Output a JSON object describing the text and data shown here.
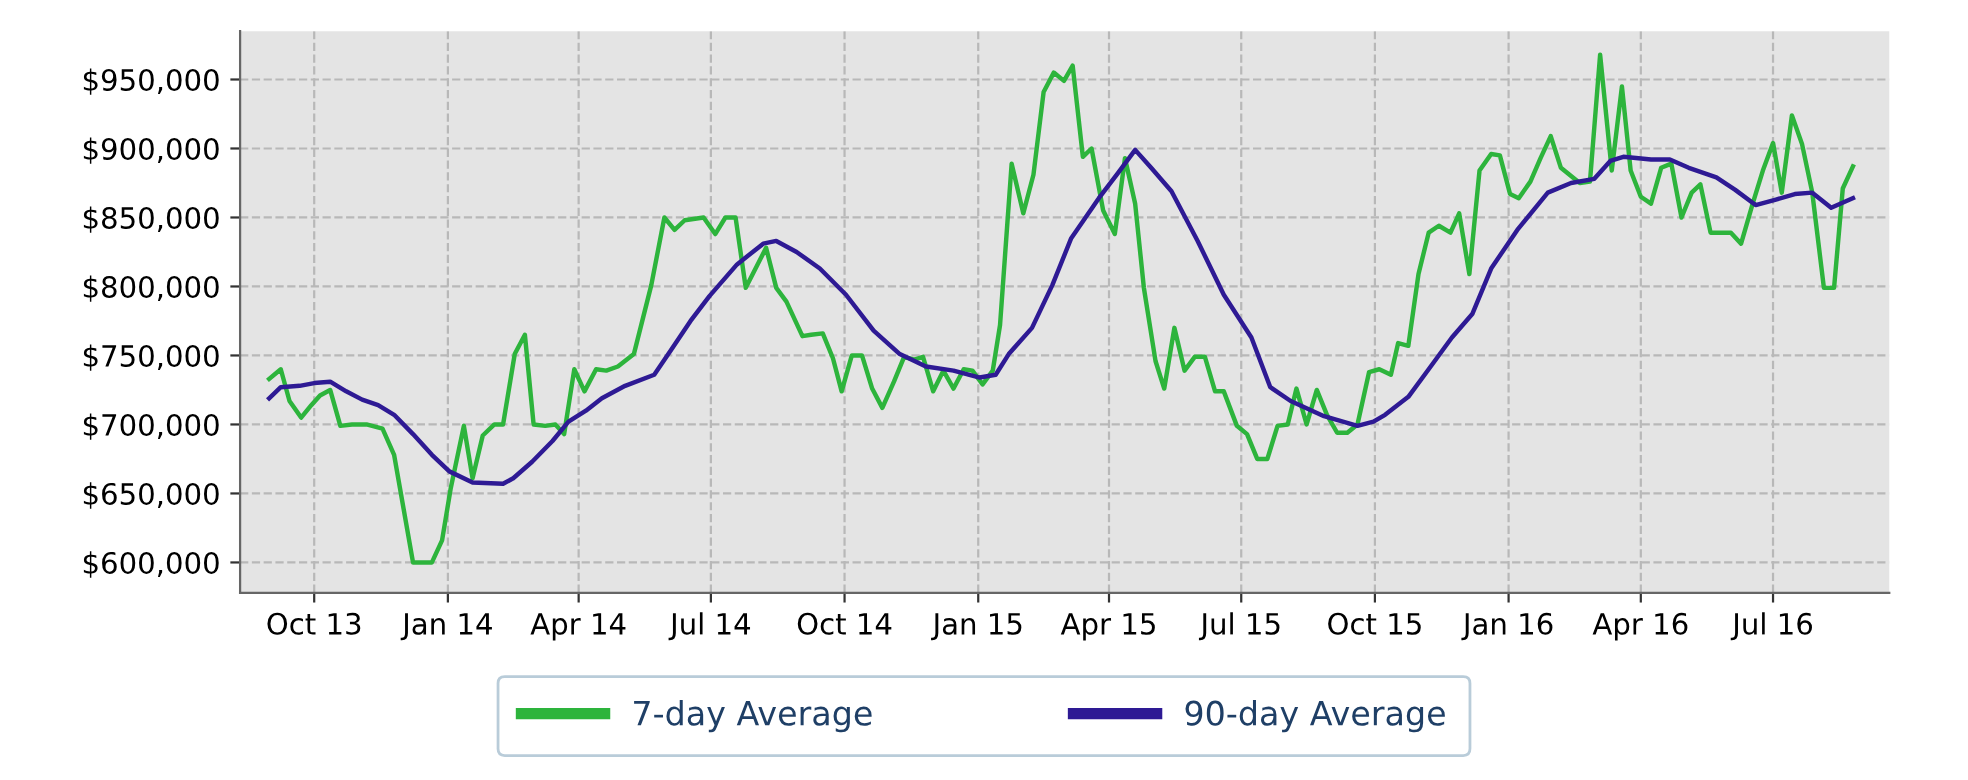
{
  "chart_data": {
    "type": "line",
    "xlim": [
      "2013-08-11",
      "2016-09-19"
    ],
    "xticks": [
      {
        "value": "2013-10-01",
        "label": "Oct 13"
      },
      {
        "value": "2014-01-01",
        "label": "Jan 14"
      },
      {
        "value": "2014-04-01",
        "label": "Apr 14"
      },
      {
        "value": "2014-07-01",
        "label": "Jul 14"
      },
      {
        "value": "2014-10-01",
        "label": "Oct 14"
      },
      {
        "value": "2015-01-01",
        "label": "Jan 15"
      },
      {
        "value": "2015-04-01",
        "label": "Apr 15"
      },
      {
        "value": "2015-07-01",
        "label": "Jul 15"
      },
      {
        "value": "2015-10-01",
        "label": "Oct 15"
      },
      {
        "value": "2016-01-01",
        "label": "Jan 16"
      },
      {
        "value": "2016-04-01",
        "label": "Apr 16"
      },
      {
        "value": "2016-07-01",
        "label": "Jul 16"
      }
    ],
    "ylim": [
      578000,
      985000
    ],
    "yticks": [
      {
        "value": 600000,
        "label": "$600,000"
      },
      {
        "value": 650000,
        "label": "$650,000"
      },
      {
        "value": 700000,
        "label": "$700,000"
      },
      {
        "value": 750000,
        "label": "$750,000"
      },
      {
        "value": 800000,
        "label": "$800,000"
      },
      {
        "value": 850000,
        "label": "$850,000"
      },
      {
        "value": 900000,
        "label": "$900,000"
      },
      {
        "value": 950000,
        "label": "$950,000"
      }
    ],
    "grid": true,
    "legend": "bottom",
    "marker": "none",
    "line_style": "solid",
    "series": [
      {
        "name": "7-day Average",
        "color": "#2db43c",
        "x": [
          "2013-08-31",
          "2013-09-08",
          "2013-09-14",
          "2013-09-22",
          "2013-09-29",
          "2013-10-05",
          "2013-10-12",
          "2013-10-19",
          "2013-10-27",
          "2013-11-06",
          "2013-11-17",
          "2013-11-25",
          "2013-12-08",
          "2013-12-21",
          "2013-12-28",
          "2014-01-03",
          "2014-01-12",
          "2014-01-18",
          "2014-01-25",
          "2014-02-02",
          "2014-02-08",
          "2014-02-16",
          "2014-02-23",
          "2014-03-01",
          "2014-03-09",
          "2014-03-16",
          "2014-03-22",
          "2014-03-29",
          "2014-04-05",
          "2014-04-13",
          "2014-04-20",
          "2014-04-28",
          "2014-05-09",
          "2014-05-21",
          "2014-05-30",
          "2014-06-06",
          "2014-06-13",
          "2014-06-26",
          "2014-07-04",
          "2014-07-11",
          "2014-07-18",
          "2014-07-25",
          "2014-08-08",
          "2014-08-15",
          "2014-08-22",
          "2014-09-02",
          "2014-09-08",
          "2014-09-16",
          "2014-09-23",
          "2014-09-29",
          "2014-10-06",
          "2014-10-13",
          "2014-10-20",
          "2014-10-27",
          "2014-11-04",
          "2014-11-11",
          "2014-11-18",
          "2014-11-24",
          "2014-12-01",
          "2014-12-08",
          "2014-12-15",
          "2014-12-22",
          "2014-12-28",
          "2015-01-04",
          "2015-01-11",
          "2015-01-16",
          "2015-01-24",
          "2015-02-01",
          "2015-02-08",
          "2015-02-15",
          "2015-02-22",
          "2015-03-01",
          "2015-03-07",
          "2015-03-14",
          "2015-03-20",
          "2015-03-28",
          "2015-04-05",
          "2015-04-12",
          "2015-04-19",
          "2015-04-25",
          "2015-05-03",
          "2015-05-09",
          "2015-05-16",
          "2015-05-23",
          "2015-05-30",
          "2015-06-06",
          "2015-06-13",
          "2015-06-19",
          "2015-06-28",
          "2015-07-05",
          "2015-07-12",
          "2015-07-19",
          "2015-07-26",
          "2015-08-02",
          "2015-08-08",
          "2015-08-15",
          "2015-08-22",
          "2015-08-29",
          "2015-09-05",
          "2015-09-12",
          "2015-09-19",
          "2015-09-27",
          "2015-10-04",
          "2015-10-12",
          "2015-10-17",
          "2015-10-24",
          "2015-10-31",
          "2015-11-07",
          "2015-11-14",
          "2015-11-22",
          "2015-11-28",
          "2015-12-05",
          "2015-12-12",
          "2015-12-20",
          "2015-12-26",
          "2016-01-02",
          "2016-01-08",
          "2016-01-16",
          "2016-01-23",
          "2016-01-30",
          "2016-02-06",
          "2016-02-13",
          "2016-02-19",
          "2016-02-26",
          "2016-03-04",
          "2016-03-12",
          "2016-03-19",
          "2016-03-25",
          "2016-04-01",
          "2016-04-08",
          "2016-04-15",
          "2016-04-22",
          "2016-04-29",
          "2016-05-06",
          "2016-05-12",
          "2016-05-19",
          "2016-05-26",
          "2016-06-02",
          "2016-06-09",
          "2016-06-17",
          "2016-06-24",
          "2016-07-01",
          "2016-07-07",
          "2016-07-14",
          "2016-07-21",
          "2016-07-28",
          "2016-08-05",
          "2016-08-12",
          "2016-08-18",
          "2016-08-25"
        ],
        "values": [
          733000,
          740000,
          717000,
          705000,
          714000,
          721000,
          725000,
          699000,
          700000,
          700000,
          697000,
          678000,
          600000,
          600000,
          616000,
          654000,
          699000,
          661000,
          692000,
          700000,
          700000,
          751000,
          765000,
          700000,
          699000,
          700000,
          693000,
          740000,
          724000,
          740000,
          739000,
          742000,
          751000,
          801000,
          850000,
          841000,
          848000,
          850000,
          838000,
          850000,
          850000,
          799000,
          828000,
          799000,
          789000,
          764000,
          765000,
          766000,
          748000,
          724000,
          750000,
          750000,
          726000,
          712000,
          731000,
          749000,
          747000,
          749000,
          724000,
          739000,
          726000,
          740000,
          739000,
          729000,
          739000,
          772000,
          889000,
          853000,
          881000,
          941000,
          955000,
          949000,
          960000,
          894000,
          900000,
          855000,
          838000,
          893000,
          860000,
          799000,
          746000,
          726000,
          770000,
          739000,
          749000,
          749000,
          724000,
          724000,
          699000,
          693000,
          675000,
          675000,
          699000,
          700000,
          726000,
          700000,
          725000,
          707000,
          694000,
          694000,
          700000,
          738000,
          740000,
          736000,
          759000,
          757000,
          809000,
          839000,
          844000,
          839000,
          853000,
          809000,
          884000,
          896000,
          895000,
          867000,
          864000,
          876000,
          893000,
          909000,
          886000,
          880000,
          875000,
          876000,
          968000,
          884000,
          945000,
          884000,
          865000,
          860000,
          886000,
          889000,
          850000,
          868000,
          874000,
          839000,
          839000,
          839000,
          831000,
          860000,
          884000,
          904000,
          868000,
          924000,
          903000,
          868000,
          799000,
          799000,
          871000,
          887000
        ]
      },
      {
        "name": "90-day Average",
        "color": "#2e1a94",
        "x": [
          "2013-08-31",
          "2013-09-08",
          "2013-09-21",
          "2013-10-01",
          "2013-10-12",
          "2013-10-23",
          "2013-11-03",
          "2013-11-14",
          "2013-11-25",
          "2013-12-08",
          "2013-12-21",
          "2014-01-02",
          "2014-01-18",
          "2014-02-08",
          "2014-02-15",
          "2014-02-28",
          "2014-03-14",
          "2014-03-25",
          "2014-04-06",
          "2014-04-17",
          "2014-05-03",
          "2014-05-23",
          "2014-06-03",
          "2014-06-17",
          "2014-06-30",
          "2014-07-19",
          "2014-08-06",
          "2014-08-15",
          "2014-08-29",
          "2014-09-14",
          "2014-10-02",
          "2014-10-21",
          "2014-11-08",
          "2014-11-26",
          "2014-12-15",
          "2015-01-02",
          "2015-01-13",
          "2015-01-22",
          "2015-02-07",
          "2015-02-21",
          "2015-03-06",
          "2015-03-25",
          "2015-04-07",
          "2015-04-19",
          "2015-04-30",
          "2015-05-14",
          "2015-06-01",
          "2015-06-19",
          "2015-07-08",
          "2015-07-21",
          "2015-08-04",
          "2015-08-27",
          "2015-09-19",
          "2015-09-30",
          "2015-10-08",
          "2015-10-24",
          "2015-11-07",
          "2015-11-23",
          "2015-12-07",
          "2015-12-20",
          "2016-01-07",
          "2016-01-28",
          "2016-02-13",
          "2016-02-29",
          "2016-03-11",
          "2016-03-20",
          "2016-04-08",
          "2016-04-21",
          "2016-05-04",
          "2016-05-23",
          "2016-06-05",
          "2016-06-19",
          "2016-07-03",
          "2016-07-16",
          "2016-07-28",
          "2016-08-10",
          "2016-08-25"
        ],
        "values": [
          719000,
          727000,
          728000,
          730000,
          731000,
          724000,
          718000,
          714000,
          707000,
          693000,
          678000,
          666000,
          658000,
          657000,
          661000,
          673000,
          688000,
          702000,
          710000,
          719000,
          728000,
          736000,
          753000,
          775000,
          793000,
          816000,
          831000,
          833000,
          825000,
          813000,
          794000,
          768000,
          751000,
          742000,
          739000,
          734000,
          736000,
          751000,
          770000,
          801000,
          835000,
          864000,
          882000,
          899000,
          886000,
          869000,
          833000,
          794000,
          763000,
          727000,
          717000,
          706000,
          699000,
          702000,
          707000,
          720000,
          740000,
          763000,
          780000,
          813000,
          841000,
          868000,
          875000,
          878000,
          891000,
          894000,
          892000,
          892000,
          886000,
          879000,
          870000,
          859000,
          863000,
          867000,
          868000,
          857000,
          864000
        ]
      }
    ]
  }
}
